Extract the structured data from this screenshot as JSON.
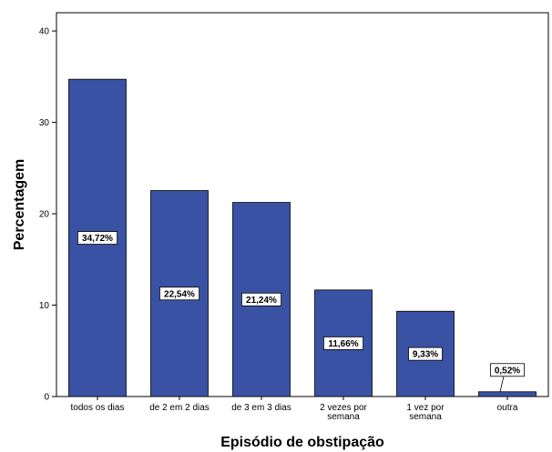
{
  "chart_data": {
    "type": "bar",
    "xlabel": "Episódio de obstipação",
    "ylabel": "Percentagem",
    "ylim": [
      0,
      42
    ],
    "yticks": [
      0,
      10,
      20,
      30,
      40
    ],
    "categories": [
      [
        "todos os dias"
      ],
      [
        "de 2 em 2 dias"
      ],
      [
        "de 3 em 3 dias"
      ],
      [
        "2 vezes por",
        "semana"
      ],
      [
        "1 vez por",
        "semana"
      ],
      [
        "outra"
      ]
    ],
    "values": [
      34.72,
      22.54,
      21.24,
      11.66,
      9.33,
      0.52
    ],
    "data_labels": [
      "34,72%",
      "22,54%",
      "21,24%",
      "11,66%",
      "9,33%",
      "0,52%"
    ],
    "bar_color": "#3a52a3",
    "grid": false
  }
}
